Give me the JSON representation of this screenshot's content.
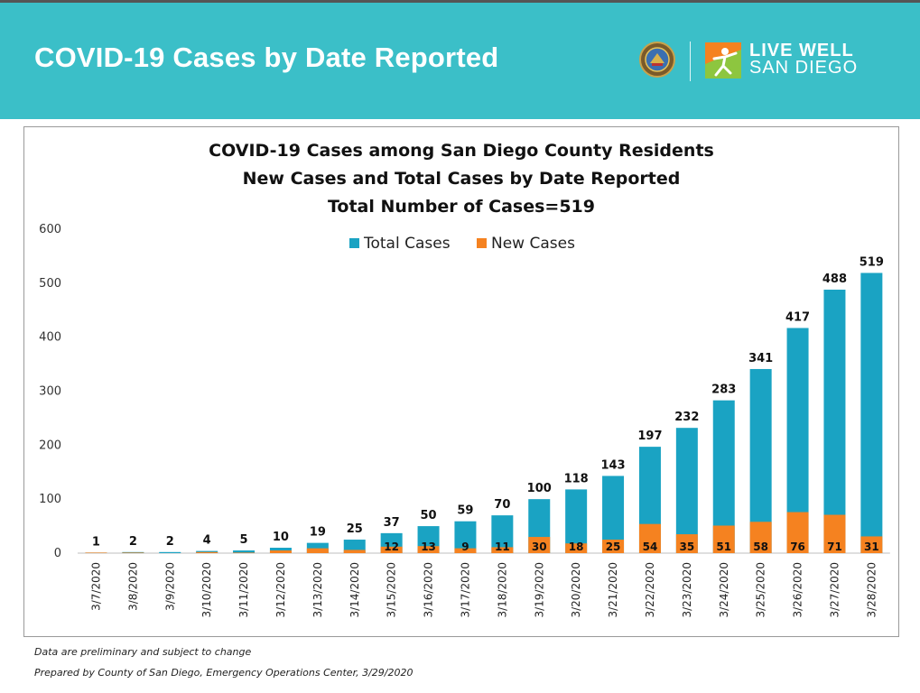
{
  "banner": {
    "title": "COVID-19 Cases by Date Reported",
    "brand_line1": "LIVE WELL",
    "brand_line2": "SAN DIEGO",
    "color": "#3bbfc8"
  },
  "icons": [
    "county-seal-icon",
    "live-well-logo-icon"
  ],
  "chart_data": {
    "type": "bar",
    "title": "COVID-19 Cases among San Diego County Residents",
    "subtitle": "New Cases and Total Cases by Date Reported",
    "subtitle2": "Total Number of Cases=519",
    "categories": [
      "3/7/2020",
      "3/8/2020",
      "3/9/2020",
      "3/10/2020",
      "3/11/2020",
      "3/12/2020",
      "3/13/2020",
      "3/14/2020",
      "3/15/2020",
      "3/16/2020",
      "3/17/2020",
      "3/18/2020",
      "3/19/2020",
      "3/20/2020",
      "3/21/2020",
      "3/22/2020",
      "3/23/2020",
      "3/24/2020",
      "3/25/2020",
      "3/26/2020",
      "3/27/2020",
      "3/28/2020"
    ],
    "series": [
      {
        "name": "Total Cases",
        "color": "#1aa3c3",
        "values": [
          1,
          2,
          2,
          4,
          5,
          10,
          19,
          25,
          37,
          50,
          59,
          70,
          100,
          118,
          143,
          197,
          232,
          283,
          341,
          417,
          488,
          519
        ]
      },
      {
        "name": "New Cases",
        "color": "#f58220",
        "values": [
          1,
          1,
          0,
          2,
          1,
          5,
          9,
          6,
          12,
          13,
          9,
          11,
          30,
          18,
          25,
          54,
          35,
          51,
          58,
          76,
          71,
          31
        ],
        "labels_shown": [
          null,
          null,
          null,
          null,
          null,
          null,
          null,
          null,
          12,
          13,
          9,
          11,
          30,
          18,
          25,
          54,
          35,
          51,
          58,
          76,
          71,
          31
        ]
      }
    ],
    "ylim": [
      0,
      600
    ],
    "yticks": [
      "0",
      "100",
      "200",
      "300",
      "400",
      "500",
      "600"
    ],
    "legend_position": "top-center",
    "grid": false
  },
  "footnotes": {
    "line1": "Data are preliminary and subject to change",
    "line2": "Prepared by County of San Diego, Emergency Operations Center, 3/29/2020"
  }
}
